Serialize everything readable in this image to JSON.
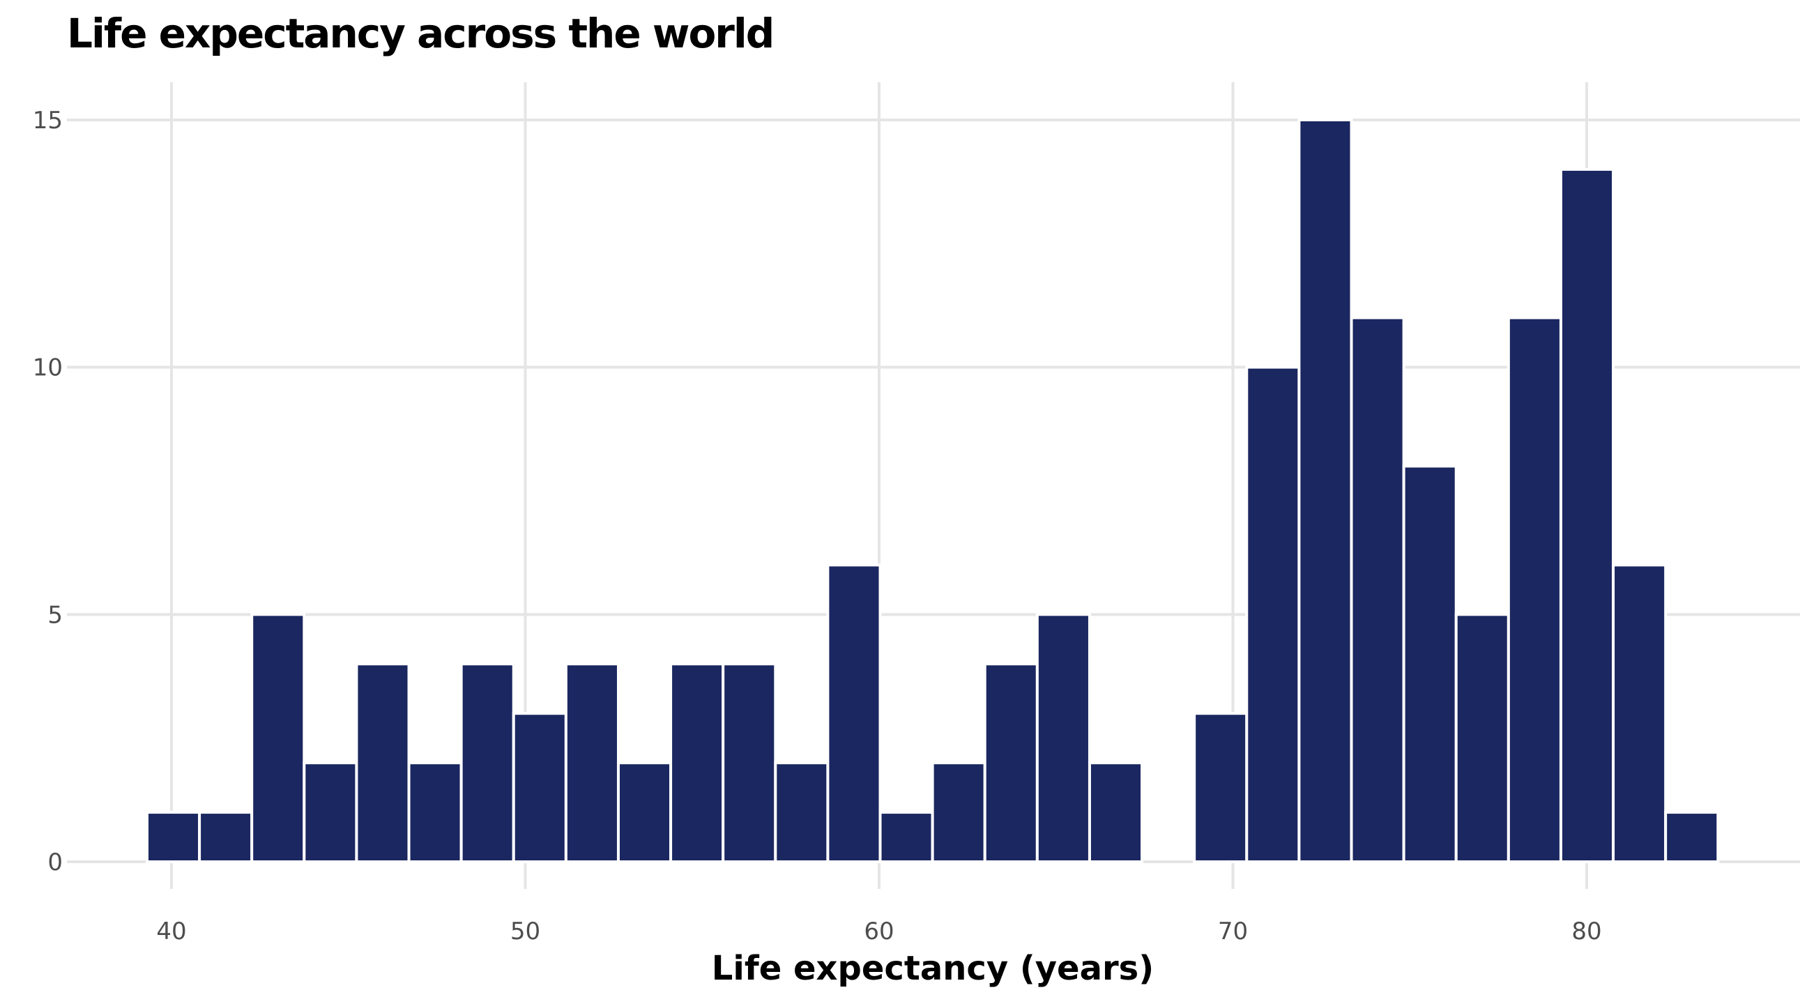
{
  "chart_data": {
    "type": "bar",
    "title": "Life expectancy across the world",
    "xlabel": "Life expectancy (years)",
    "ylabel": "",
    "xlim": [
      37,
      86
    ],
    "ylim": [
      0,
      15.7
    ],
    "xticks": [
      40,
      50,
      60,
      70,
      80
    ],
    "yticks": [
      0,
      5,
      10,
      15
    ],
    "grid": true,
    "bar_color": "#1b2760",
    "bin_width": 1.48,
    "x": [
      40.05,
      41.53,
      43.01,
      44.49,
      45.97,
      47.45,
      48.93,
      50.41,
      51.89,
      53.37,
      54.85,
      56.33,
      57.81,
      59.29,
      60.77,
      62.25,
      63.73,
      65.21,
      66.69,
      68.17,
      69.65,
      71.13,
      72.61,
      74.09,
      75.57,
      77.05,
      78.53,
      80.01,
      81.49,
      82.97
    ],
    "values": [
      1,
      1,
      5,
      2,
      4,
      2,
      4,
      3,
      4,
      2,
      4,
      4,
      2,
      6,
      1,
      2,
      4,
      5,
      2,
      0,
      3,
      10,
      15,
      11,
      8,
      5,
      11,
      14,
      6,
      1
    ]
  }
}
